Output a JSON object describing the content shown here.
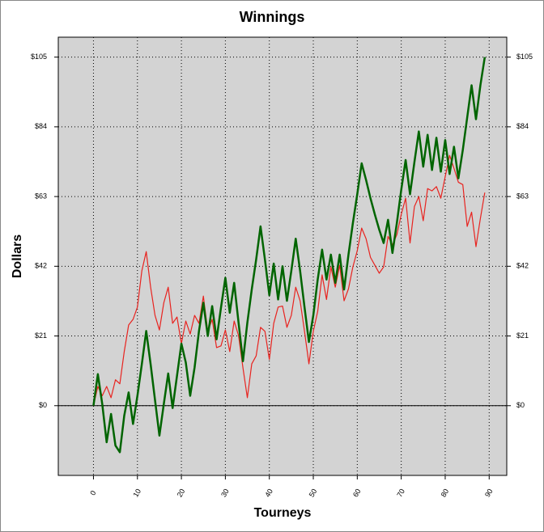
{
  "chart_data": {
    "type": "line",
    "title": "Winnings",
    "x_label": "Tourneys",
    "y_label": "Dollars",
    "x": [
      0,
      1,
      2,
      3,
      4,
      5,
      6,
      7,
      8,
      9,
      10,
      11,
      12,
      13,
      14,
      15,
      16,
      17,
      18,
      19,
      20,
      21,
      22,
      23,
      24,
      25,
      26,
      27,
      28,
      29,
      30,
      31,
      32,
      33,
      34,
      35,
      36,
      37,
      38,
      39,
      40,
      41,
      42,
      43,
      44,
      45,
      46,
      47,
      48,
      49,
      50,
      51,
      52,
      53,
      54,
      55,
      56,
      57,
      58,
      59,
      60,
      61,
      62,
      63,
      64,
      65,
      66,
      67,
      68,
      69,
      70,
      71,
      72,
      73,
      74,
      75,
      76,
      77,
      78,
      79,
      80,
      81,
      82,
      83,
      84,
      85,
      86,
      87,
      88,
      89
    ],
    "series": [
      {
        "color": "#006400",
        "width": 2.5,
        "values": [
          0,
          9.5,
          0.5,
          -11,
          -2.5,
          -12,
          -14,
          -3,
          4,
          -5.5,
          3,
          12.5,
          22.5,
          12.5,
          1.7,
          -9,
          0.5,
          9.7,
          -0.7,
          9,
          18.7,
          13,
          3,
          11.5,
          22.5,
          31,
          21,
          30,
          20,
          29.5,
          38.5,
          28,
          37,
          25,
          13.4,
          25,
          35,
          44,
          54,
          44,
          33.3,
          42.8,
          32,
          42,
          31.6,
          40.6,
          50.3,
          40.6,
          29.7,
          19.2,
          27.2,
          38,
          47,
          38,
          45.5,
          37,
          45.5,
          35,
          45.5,
          55,
          63.7,
          73,
          68,
          62.5,
          57.6,
          53,
          49,
          56,
          46,
          55,
          65,
          74,
          63.7,
          73.4,
          82.6,
          72,
          81.6,
          71,
          80.7,
          70.5,
          80,
          69.8,
          78,
          68.5,
          77,
          86.8,
          96.5,
          86.3,
          96.5,
          105
        ]
      },
      {
        "color": "#e8231f",
        "width": 1.2,
        "values": [
          0,
          5.8,
          3,
          5.8,
          2.4,
          7.8,
          6.6,
          16.3,
          24.3,
          26,
          29.7,
          40.6,
          46.4,
          35.7,
          27.2,
          22.8,
          31,
          35.7,
          24.8,
          26.7,
          18.7,
          25.5,
          21.6,
          27.2,
          24.8,
          33,
          22.4,
          26,
          17.5,
          18,
          22.8,
          16.3,
          25.5,
          21.1,
          11.4,
          2.4,
          12.6,
          15,
          23.6,
          22.4,
          13.9,
          24.8,
          29.7,
          30,
          23.6,
          27.2,
          35.7,
          31.6,
          22.4,
          12.6,
          22.4,
          28.4,
          39.4,
          32,
          41.8,
          35.7,
          42.3,
          31.6,
          35.2,
          41.8,
          46.7,
          53.5,
          50.3,
          44.7,
          42.3,
          39.9,
          41.8,
          51,
          48.4,
          51.5,
          57.6,
          62.5,
          49,
          60,
          63,
          55.7,
          65.4,
          64.7,
          66,
          62.5,
          69,
          75.4,
          71.5,
          67.3,
          66.6,
          54,
          58.3,
          47.9,
          56.4,
          64.2
        ]
      }
    ],
    "xlim": [
      -8,
      94
    ],
    "xticks": [
      0,
      10,
      20,
      30,
      40,
      50,
      60,
      70,
      80,
      90
    ],
    "ylim": [
      -21,
      111
    ],
    "yticks": [
      {
        "value": 0,
        "label": "$0"
      },
      {
        "value": 21,
        "label": "$21"
      },
      {
        "value": 42,
        "label": "$42"
      },
      {
        "value": 63,
        "label": "$63"
      },
      {
        "value": 84,
        "label": "$84"
      },
      {
        "value": 105,
        "label": "$105"
      }
    ],
    "grid": true,
    "background": "#d3d3d3"
  }
}
